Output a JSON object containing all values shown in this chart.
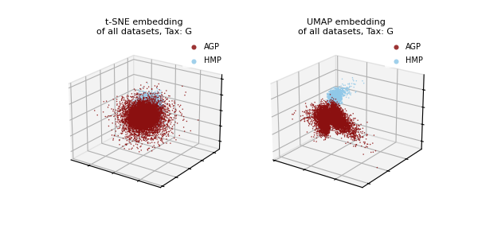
{
  "title_left": "t-SNE embedding\nof all datasets, Tax: G",
  "title_right": "UMAP embedding\nof all datasets, Tax: G",
  "agp_color": "#8B1010",
  "hmp_color": "#90C8E8",
  "agp_label": "AGP",
  "hmp_label": "HMP",
  "pane_color": "#e8e8e8",
  "grid_color": "#ffffff",
  "point_size": 1.2,
  "alpha": 0.85,
  "fig_width": 6.0,
  "fig_height": 2.98,
  "dpi": 100
}
